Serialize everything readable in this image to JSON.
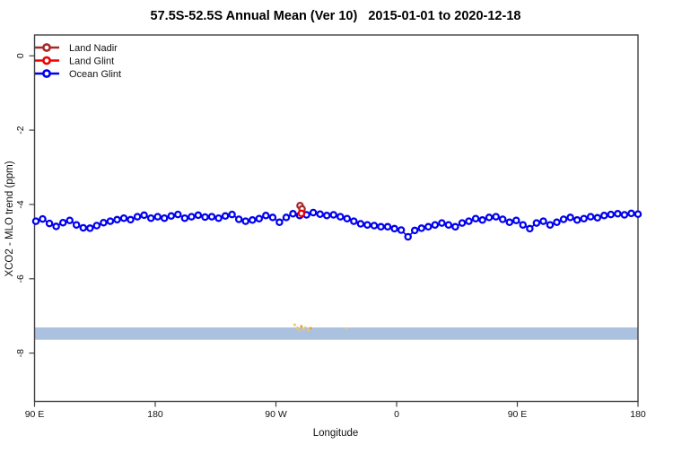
{
  "title": "57.5S-52.5S Annual Mean (Ver 10)   2015-01-01 to 2020-12-18",
  "axes": {
    "x_label": "Longitude",
    "y_label": "XCO2 - MLO trend (ppm)"
  },
  "legend": {
    "position": "top-left",
    "items": [
      {
        "label": "Land Nadir",
        "color": "#A52A2A"
      },
      {
        "label": "Land Glint",
        "color": "#EE0000"
      },
      {
        "label": "Ocean Glint",
        "color": "#0000EE"
      }
    ]
  },
  "chart_data": {
    "type": "line",
    "title": "57.5S-52.5S Annual Mean (Ver 10)   2015-01-01 to 2020-12-18",
    "xlabel": "Longitude",
    "ylabel": "XCO2 - MLO trend (ppm)",
    "grid": false,
    "legend_position": "top-left",
    "xlim": [
      90,
      540
    ],
    "ylim": [
      -9.3,
      0.56
    ],
    "x_axis_wraps_longitude": true,
    "xticks": [
      {
        "pos": 90,
        "label": "90 E"
      },
      {
        "pos": 180,
        "label": "180"
      },
      {
        "pos": 270,
        "label": "90 W"
      },
      {
        "pos": 360,
        "label": "0"
      },
      {
        "pos": 450,
        "label": "90 E"
      },
      {
        "pos": 540,
        "label": "180"
      }
    ],
    "yticks": [
      {
        "pos": 0,
        "label": "0"
      },
      {
        "pos": -2,
        "label": "-2"
      },
      {
        "pos": -4,
        "label": "-4"
      },
      {
        "pos": -6,
        "label": "-6"
      },
      {
        "pos": -8,
        "label": "-8"
      }
    ],
    "series": [
      {
        "name": "Ocean Glint",
        "color": "#0000EE",
        "marker": "open-circle",
        "x_start": 91,
        "x_step": 5.045,
        "values": [
          -4.45,
          -4.39,
          -4.51,
          -4.59,
          -4.49,
          -4.43,
          -4.55,
          -4.63,
          -4.64,
          -4.57,
          -4.49,
          -4.45,
          -4.41,
          -4.37,
          -4.41,
          -4.33,
          -4.29,
          -4.37,
          -4.33,
          -4.37,
          -4.31,
          -4.27,
          -4.37,
          -4.33,
          -4.29,
          -4.34,
          -4.33,
          -4.37,
          -4.31,
          -4.27,
          -4.4,
          -4.45,
          -4.42,
          -4.38,
          -4.3,
          -4.35,
          -4.48,
          -4.35,
          -4.25,
          -4.3,
          -4.28,
          -4.22,
          -4.26,
          -4.3,
          -4.28,
          -4.33,
          -4.38,
          -4.45,
          -4.52,
          -4.55,
          -4.57,
          -4.6,
          -4.6,
          -4.65,
          -4.69,
          -4.87,
          -4.7,
          -4.64,
          -4.6,
          -4.55,
          -4.5,
          -4.55,
          -4.6,
          -4.5,
          -4.45,
          -4.38,
          -4.42,
          -4.35,
          -4.33,
          -4.4,
          -4.48,
          -4.43,
          -4.55,
          -4.65,
          -4.5,
          -4.45,
          -4.55,
          -4.48,
          -4.4,
          -4.35,
          -4.42,
          -4.38,
          -4.33,
          -4.36,
          -4.3,
          -4.27,
          -4.25,
          -4.28,
          -4.24,
          -4.26
        ]
      },
      {
        "name": "Land Nadir",
        "color": "#A52A2A",
        "marker": "open-circle",
        "points": [
          {
            "x": 288,
            "y": -4.03
          },
          {
            "x": 289.5,
            "y": -4.12
          }
        ]
      },
      {
        "name": "Land Glint",
        "color": "#EE0000",
        "marker": "open-circle",
        "points": [
          {
            "x": 289,
            "y": -4.24
          }
        ]
      }
    ],
    "band": {
      "name": "horizontal-band",
      "color": "#AAC1E0",
      "y_top": -7.31,
      "y_bottom": -7.64
    },
    "specks": {
      "color": "#F2C85E",
      "alt_color": "#E9A23B",
      "points": [
        {
          "x": 284,
          "y": -7.24
        },
        {
          "x": 286,
          "y": -7.32
        },
        {
          "x": 287.5,
          "y": -7.4
        },
        {
          "x": 289,
          "y": -7.28
        },
        {
          "x": 290.5,
          "y": -7.35
        },
        {
          "x": 292,
          "y": -7.3
        },
        {
          "x": 294,
          "y": -7.38
        },
        {
          "x": 296,
          "y": -7.33
        },
        {
          "x": 322.5,
          "y": -7.34
        }
      ]
    }
  }
}
